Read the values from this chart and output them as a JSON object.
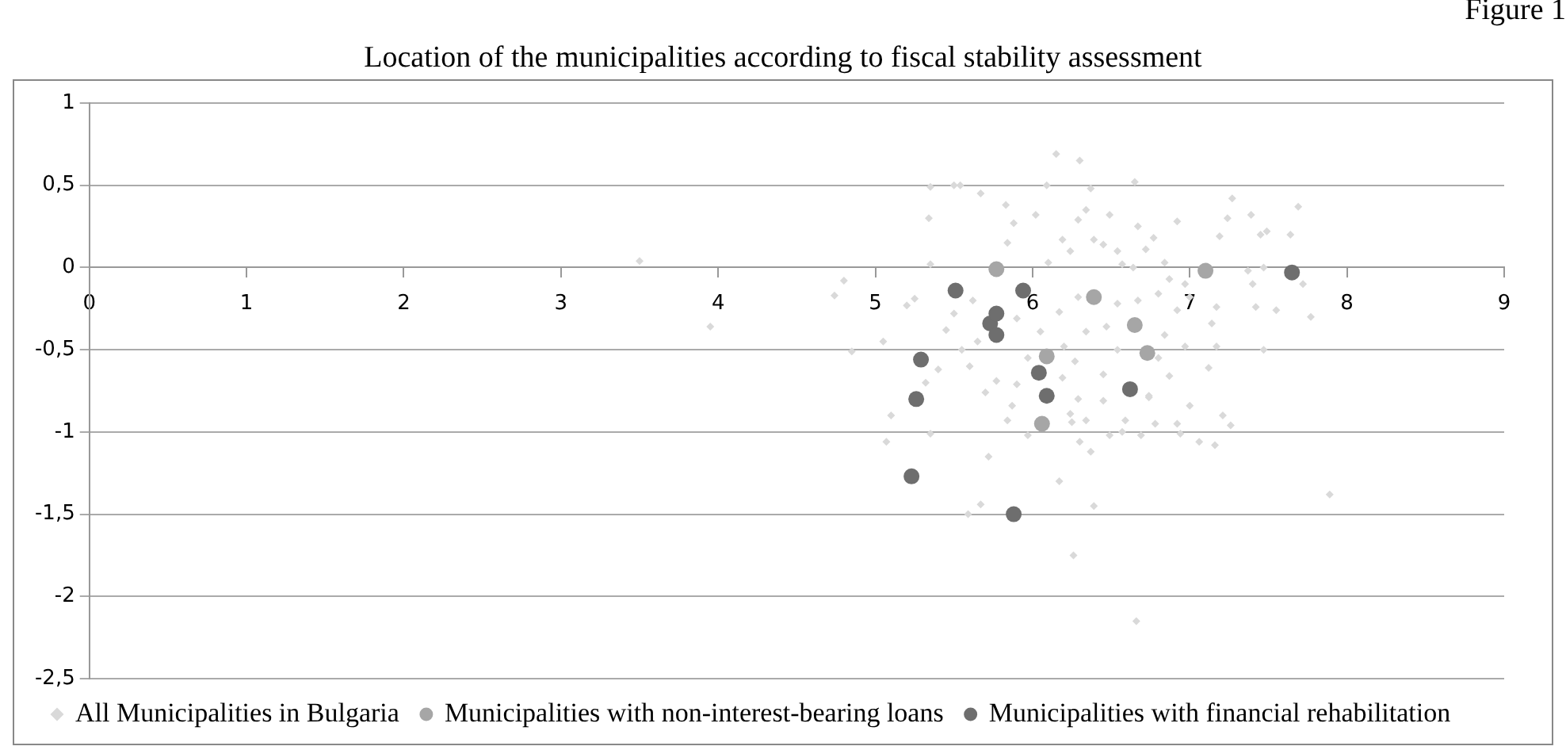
{
  "chart_data": {
    "type": "scatter",
    "title": "Location of the municipalities according to fiscal stability assessment",
    "annotations": [
      "Figure 1"
    ],
    "xlim": [
      0,
      9
    ],
    "xticks": [
      0,
      1,
      2,
      3,
      4,
      5,
      6,
      7,
      8,
      9
    ],
    "ylim": [
      -2.5,
      1
    ],
    "yticks": [
      {
        "value": -2.5,
        "label": "-2,5"
      },
      {
        "value": -2,
        "label": "-2"
      },
      {
        "value": -1.5,
        "label": "-1,5"
      },
      {
        "value": -1,
        "label": "-1"
      },
      {
        "value": -0.5,
        "label": "-0,5"
      },
      {
        "value": 0,
        "label": "0"
      },
      {
        "value": 0.5,
        "label": "0,5"
      },
      {
        "value": 1,
        "label": "1"
      }
    ],
    "grid": "y",
    "legend": "bottom",
    "series": [
      {
        "name": "All Municipalities in Bulgaria",
        "color": "#d9d9d9",
        "marker": "diamond",
        "x": [
          3.5,
          3.95,
          4.74,
          4.8,
          4.85,
          5.05,
          5.2,
          5.25,
          5.35,
          5.5,
          5.54,
          5.67,
          5.83,
          5.88,
          5.34,
          5.35,
          5.84,
          6.15,
          6.3,
          6.09,
          6.37,
          6.65,
          7.27,
          7.69,
          7.24,
          7.39,
          7.49,
          7.45,
          7.64,
          7.19,
          6.92,
          6.49,
          6.34,
          6.02,
          6.29,
          6.77,
          6.67,
          6.39,
          6.19,
          6.45,
          6.54,
          6.24,
          6.72,
          6.84,
          6.1,
          6.57,
          6.64,
          7.37,
          7.47,
          7.72,
          7.4,
          6.97,
          6.87,
          6.8,
          6.67,
          6.29,
          6.17,
          6.54,
          7.0,
          7.17,
          7.42,
          7.55,
          7.77,
          6.92,
          7.14,
          5.9,
          6.05,
          6.34,
          6.47,
          6.84,
          7.17,
          6.97,
          7.47,
          6.2,
          6.54,
          5.97,
          6.27,
          6.8,
          7.12,
          6.19,
          6.45,
          6.87,
          5.9,
          6.29,
          6.74,
          5.1,
          5.07,
          5.35,
          5.32,
          5.7,
          5.87,
          5.84,
          5.97,
          5.72,
          5.67,
          5.59,
          6.24,
          6.25,
          6.3,
          6.37,
          6.17,
          6.39,
          6.26,
          6.66,
          6.45,
          6.59,
          6.49,
          6.57,
          6.69,
          6.78,
          6.74,
          7.0,
          6.92,
          6.94,
          7.06,
          7.16,
          7.21,
          7.26,
          7.89,
          6.34,
          5.77,
          5.45,
          5.55,
          5.6,
          5.4,
          5.65,
          5.5,
          5.62
        ],
        "values": [
          0.04,
          -0.36,
          -0.17,
          -0.08,
          -0.51,
          -0.45,
          -0.23,
          -0.19,
          0.49,
          0.5,
          0.5,
          0.45,
          0.38,
          0.27,
          0.3,
          0.02,
          0.15,
          0.69,
          0.65,
          0.5,
          0.48,
          0.52,
          0.42,
          0.37,
          0.3,
          0.32,
          0.22,
          0.2,
          0.2,
          0.19,
          0.28,
          0.32,
          0.35,
          0.32,
          0.29,
          0.18,
          0.25,
          0.17,
          0.17,
          0.14,
          0.1,
          0.1,
          0.11,
          0.03,
          0.03,
          0.02,
          0.0,
          -0.02,
          0.0,
          -0.1,
          -0.1,
          -0.1,
          -0.07,
          -0.16,
          -0.2,
          -0.18,
          -0.27,
          -0.22,
          -0.18,
          -0.24,
          -0.24,
          -0.26,
          -0.3,
          -0.26,
          -0.34,
          -0.31,
          -0.39,
          -0.39,
          -0.36,
          -0.41,
          -0.48,
          -0.48,
          -0.5,
          -0.48,
          -0.5,
          -0.55,
          -0.57,
          -0.55,
          -0.61,
          -0.67,
          -0.65,
          -0.66,
          -0.71,
          -0.8,
          -0.79,
          -0.9,
          -1.06,
          -1.01,
          -0.7,
          -0.76,
          -0.84,
          -0.93,
          -1.02,
          -1.15,
          -1.44,
          -1.5,
          -0.89,
          -0.94,
          -1.06,
          -1.12,
          -1.3,
          -1.45,
          -1.75,
          -2.15,
          -0.81,
          -0.93,
          -1.02,
          -1.0,
          -1.02,
          -0.95,
          -0.78,
          -0.84,
          -0.95,
          -1.01,
          -1.06,
          -1.08,
          -0.9,
          -0.96,
          -1.38,
          -0.93,
          -0.69,
          -0.38,
          -0.5,
          -0.6,
          -0.62,
          -0.45,
          -0.28,
          -0.2
        ]
      },
      {
        "name": "Municipalities with non-interest-bearing loans",
        "color": "#a6a6a6",
        "marker": "circle",
        "x": [
          5.77,
          6.39,
          6.09,
          6.06,
          6.65,
          6.73,
          7.1
        ],
        "values": [
          -0.01,
          -0.18,
          -0.54,
          -0.95,
          -0.35,
          -0.52,
          -0.02
        ]
      },
      {
        "name": "Municipalities with financial rehabilitation",
        "color": "#6e6e6e",
        "marker": "circle",
        "x": [
          5.51,
          5.29,
          5.26,
          5.23,
          5.73,
          5.77,
          5.77,
          5.94,
          6.04,
          6.09,
          6.62,
          5.88,
          7.65
        ],
        "values": [
          -0.14,
          -0.56,
          -0.8,
          -1.27,
          -0.34,
          -0.28,
          -0.41,
          -0.14,
          -0.64,
          -0.78,
          -0.74,
          -1.5,
          -0.03
        ]
      }
    ]
  }
}
